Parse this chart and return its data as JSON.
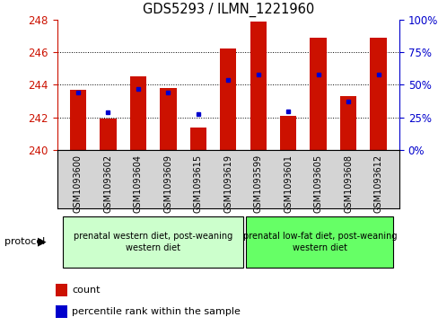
{
  "title": "GDS5293 / ILMN_1221960",
  "samples": [
    "GSM1093600",
    "GSM1093602",
    "GSM1093604",
    "GSM1093609",
    "GSM1093615",
    "GSM1093619",
    "GSM1093599",
    "GSM1093601",
    "GSM1093605",
    "GSM1093608",
    "GSM1093612"
  ],
  "bar_values": [
    243.7,
    241.9,
    244.5,
    243.8,
    241.4,
    246.2,
    247.9,
    242.1,
    246.9,
    243.3,
    246.9
  ],
  "blue_dot_values": [
    243.55,
    242.3,
    243.75,
    243.55,
    242.2,
    244.3,
    244.65,
    242.35,
    244.6,
    242.95,
    244.6
  ],
  "ylim": [
    240,
    248
  ],
  "yticks": [
    240,
    242,
    244,
    246,
    248
  ],
  "y2lim": [
    0,
    100
  ],
  "y2ticks": [
    0,
    25,
    50,
    75,
    100
  ],
  "bar_color": "#cc1100",
  "dot_color": "#0000cc",
  "bar_width": 0.55,
  "group1_label": "prenatal western diet, post-weaning\nwestern diet",
  "group2_label": "prenatal low-fat diet, post-weaning\nwestern diet",
  "group1_color": "#ccffcc",
  "group2_color": "#66ff66",
  "xtick_bg_color": "#d4d4d4",
  "protocol_label": "protocol",
  "legend_count": "count",
  "legend_pct": "percentile rank within the sample",
  "axis_color_left": "#cc1100",
  "axis_color_right": "#0000cc",
  "bg_color": "#ffffff"
}
